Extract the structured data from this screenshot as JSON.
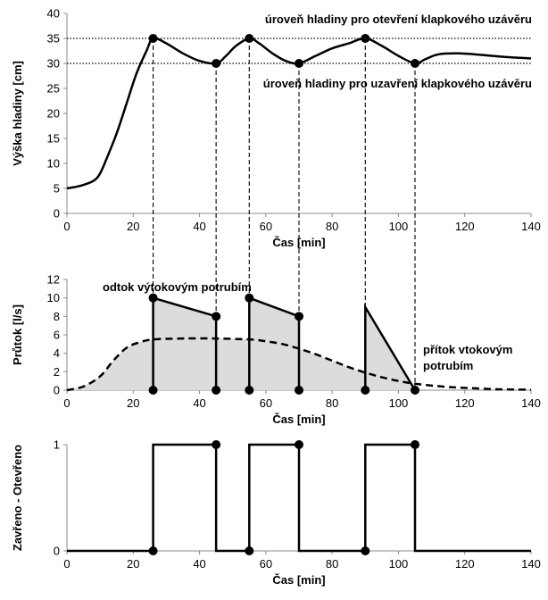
{
  "chart_data": [
    {
      "type": "line",
      "xlabel": "Čas [min]",
      "ylabel": "Výška hladiny [cm]",
      "xlim": [
        0,
        140
      ],
      "ylim": [
        0,
        40
      ],
      "xticks": [
        "0",
        "20",
        "40",
        "60",
        "80",
        "100",
        "120",
        "140"
      ],
      "yticks": [
        "0",
        "5",
        "10",
        "15",
        "20",
        "25",
        "30",
        "35",
        "40"
      ],
      "series": [
        {
          "x": [
            0,
            4,
            8,
            10,
            12,
            15,
            18,
            21,
            24,
            26,
            30,
            35,
            40,
            45,
            48,
            51,
            55,
            58,
            62,
            66,
            70,
            75,
            80,
            85,
            90,
            95,
            100,
            105,
            108,
            112,
            118,
            125,
            132,
            140
          ],
          "y": [
            5,
            5.5,
            6.5,
            8,
            11,
            16,
            22,
            28,
            32.5,
            35,
            34,
            32,
            30.5,
            30,
            31.5,
            33.5,
            35,
            34,
            32,
            30.5,
            30,
            31.5,
            33,
            34,
            35,
            33.5,
            31.5,
            30,
            30.8,
            31.8,
            32,
            31.7,
            31.3,
            31
          ]
        }
      ],
      "reference_lines": [
        {
          "y": 35,
          "label": "úroveň hladiny pro otevření klapkového uzávěru"
        },
        {
          "y": 30,
          "label": "úroveň hladiny pro uzavření klapkového uzávěru"
        }
      ],
      "markers": [
        {
          "x": 26,
          "y": 35
        },
        {
          "x": 45,
          "y": 30
        },
        {
          "x": 55,
          "y": 35
        },
        {
          "x": 70,
          "y": 30
        },
        {
          "x": 90,
          "y": 35
        },
        {
          "x": 105,
          "y": 30
        }
      ],
      "vertical_dashed_lines_x": [
        26,
        45,
        55,
        70,
        90,
        105
      ]
    },
    {
      "type": "line",
      "xlabel": "Čas [min]",
      "ylabel": "Průtok [l/s]",
      "xlim": [
        0,
        140
      ],
      "ylim": [
        0,
        12
      ],
      "xticks": [
        "0",
        "20",
        "40",
        "60",
        "80",
        "100",
        "120",
        "140"
      ],
      "yticks": [
        "0",
        "2",
        "4",
        "6",
        "8",
        "10",
        "12"
      ],
      "outflow": {
        "label": "odtok výtokovým potrubím",
        "segments": [
          {
            "x": [
              26,
              26,
              45,
              45
            ],
            "y": [
              0,
              10,
              8,
              0
            ]
          },
          {
            "x": [
              55,
              55,
              70,
              70
            ],
            "y": [
              0,
              10,
              8,
              0
            ]
          },
          {
            "x": [
              90,
              90,
              105
            ],
            "y": [
              0,
              9,
              0
            ]
          }
        ]
      },
      "inflow": {
        "label_line1": "přítok vtokovým",
        "label_line2": "potrubím",
        "x": [
          0,
          5,
          10,
          14,
          18,
          22,
          26,
          35,
          45,
          55,
          60,
          65,
          70,
          75,
          80,
          85,
          90,
          95,
          100,
          105,
          110,
          115,
          120,
          130,
          140
        ],
        "y": [
          0,
          0.4,
          1.5,
          3.2,
          4.6,
          5.2,
          5.5,
          5.6,
          5.6,
          5.5,
          5.3,
          5.0,
          4.5,
          3.9,
          3.2,
          2.5,
          1.9,
          1.4,
          1.0,
          0.7,
          0.5,
          0.35,
          0.25,
          0.1,
          0.05
        ]
      },
      "markers": [
        {
          "x": 26,
          "y": 10
        },
        {
          "x": 45,
          "y": 8
        },
        {
          "x": 55,
          "y": 10
        },
        {
          "x": 70,
          "y": 8
        },
        {
          "x": 26,
          "y": 0
        },
        {
          "x": 45,
          "y": 0
        },
        {
          "x": 55,
          "y": 0
        },
        {
          "x": 70,
          "y": 0
        },
        {
          "x": 90,
          "y": 0
        },
        {
          "x": 105,
          "y": 0
        }
      ]
    },
    {
      "type": "line",
      "xlabel": "Čas [min]",
      "ylabel": "Zavřeno - Otevřeno",
      "xlim": [
        0,
        140
      ],
      "ylim": [
        0,
        1
      ],
      "xticks": [
        "0",
        "20",
        "40",
        "60",
        "80",
        "100",
        "120",
        "140"
      ],
      "yticks": [
        "0",
        "1"
      ],
      "series": [
        {
          "x": [
            0,
            26,
            26,
            45,
            45,
            55,
            55,
            70,
            70,
            90,
            90,
            105,
            105,
            140
          ],
          "y": [
            0,
            0,
            1,
            1,
            0,
            0,
            1,
            1,
            0,
            0,
            1,
            1,
            0,
            0
          ]
        }
      ],
      "markers": [
        {
          "x": 26,
          "y": 0
        },
        {
          "x": 45,
          "y": 1
        },
        {
          "x": 55,
          "y": 0
        },
        {
          "x": 70,
          "y": 1
        },
        {
          "x": 90,
          "y": 0
        },
        {
          "x": 105,
          "y": 1
        }
      ]
    }
  ]
}
